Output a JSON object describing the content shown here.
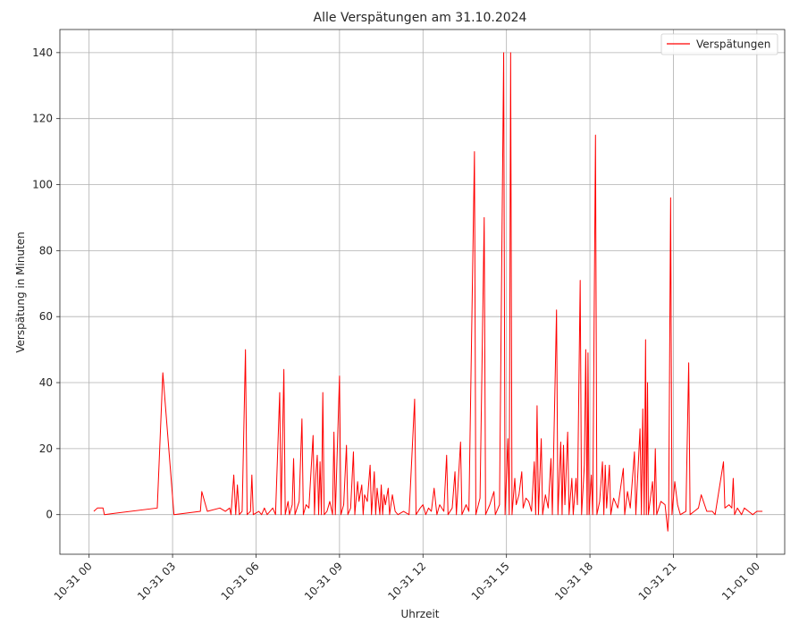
{
  "chart_data": {
    "type": "line",
    "title": "Alle Verspätungen am 31.10.2024",
    "xlabel": "Uhrzeit",
    "ylabel": "Verspätung in Minuten",
    "x_unit": "hours since 2024-10-31 00:00",
    "xlim": [
      -1.05,
      25.0
    ],
    "ylim": [
      -12,
      147
    ],
    "grid": true,
    "legend_position": "top-right",
    "xticks": [
      {
        "value": 0,
        "label": "10-31 00"
      },
      {
        "value": 3,
        "label": "10-31 03"
      },
      {
        "value": 6,
        "label": "10-31 06"
      },
      {
        "value": 9,
        "label": "10-31 09"
      },
      {
        "value": 12,
        "label": "10-31 12"
      },
      {
        "value": 15,
        "label": "10-31 15"
      },
      {
        "value": 18,
        "label": "10-31 18"
      },
      {
        "value": 21,
        "label": "10-31 21"
      },
      {
        "value": 24,
        "label": "11-01 00"
      }
    ],
    "yticks": [
      {
        "value": 0,
        "label": "0"
      },
      {
        "value": 20,
        "label": "20"
      },
      {
        "value": 40,
        "label": "40"
      },
      {
        "value": 60,
        "label": "60"
      },
      {
        "value": 80,
        "label": "80"
      },
      {
        "value": 100,
        "label": "100"
      },
      {
        "value": 120,
        "label": "120"
      },
      {
        "value": 140,
        "label": "140"
      }
    ],
    "series": [
      {
        "name": "Verspätungen",
        "color": "#ff0000",
        "points": [
          [
            0.17,
            1
          ],
          [
            0.3,
            2
          ],
          [
            0.5,
            2
          ],
          [
            0.55,
            0
          ],
          [
            2.45,
            2
          ],
          [
            2.65,
            43
          ],
          [
            3.05,
            0
          ],
          [
            4.0,
            1
          ],
          [
            4.05,
            7
          ],
          [
            4.25,
            1
          ],
          [
            4.7,
            2
          ],
          [
            4.9,
            1
          ],
          [
            5.05,
            2
          ],
          [
            5.1,
            0
          ],
          [
            5.2,
            12
          ],
          [
            5.27,
            0
          ],
          [
            5.33,
            9
          ],
          [
            5.4,
            0
          ],
          [
            5.5,
            1
          ],
          [
            5.62,
            50
          ],
          [
            5.68,
            0
          ],
          [
            5.8,
            1
          ],
          [
            5.85,
            12
          ],
          [
            5.9,
            0
          ],
          [
            6.1,
            1
          ],
          [
            6.2,
            0
          ],
          [
            6.3,
            2
          ],
          [
            6.4,
            0
          ],
          [
            6.5,
            1
          ],
          [
            6.6,
            2
          ],
          [
            6.7,
            0
          ],
          [
            6.85,
            37
          ],
          [
            6.9,
            0
          ],
          [
            7.0,
            44
          ],
          [
            7.05,
            0
          ],
          [
            7.15,
            4
          ],
          [
            7.2,
            0
          ],
          [
            7.3,
            3
          ],
          [
            7.35,
            17
          ],
          [
            7.4,
            0
          ],
          [
            7.55,
            4
          ],
          [
            7.65,
            29
          ],
          [
            7.7,
            0
          ],
          [
            7.8,
            3
          ],
          [
            7.9,
            2
          ],
          [
            8.05,
            24
          ],
          [
            8.1,
            0
          ],
          [
            8.15,
            12
          ],
          [
            8.2,
            18
          ],
          [
            8.25,
            0
          ],
          [
            8.3,
            16
          ],
          [
            8.35,
            0
          ],
          [
            8.4,
            37
          ],
          [
            8.45,
            0
          ],
          [
            8.55,
            1
          ],
          [
            8.65,
            4
          ],
          [
            8.75,
            0
          ],
          [
            8.8,
            25
          ],
          [
            8.85,
            0
          ],
          [
            9.0,
            42
          ],
          [
            9.05,
            0
          ],
          [
            9.15,
            3
          ],
          [
            9.25,
            21
          ],
          [
            9.3,
            0
          ],
          [
            9.4,
            2
          ],
          [
            9.5,
            19
          ],
          [
            9.55,
            0
          ],
          [
            9.65,
            10
          ],
          [
            9.7,
            4
          ],
          [
            9.8,
            9
          ],
          [
            9.85,
            0
          ],
          [
            9.9,
            6
          ],
          [
            10.0,
            4
          ],
          [
            10.1,
            15
          ],
          [
            10.15,
            0
          ],
          [
            10.25,
            13
          ],
          [
            10.3,
            0
          ],
          [
            10.35,
            8
          ],
          [
            10.45,
            0
          ],
          [
            10.5,
            9
          ],
          [
            10.55,
            0
          ],
          [
            10.6,
            6
          ],
          [
            10.65,
            3
          ],
          [
            10.75,
            8
          ],
          [
            10.8,
            0
          ],
          [
            10.9,
            6
          ],
          [
            11.0,
            1
          ],
          [
            11.1,
            0
          ],
          [
            11.3,
            1
          ],
          [
            11.5,
            0
          ],
          [
            11.7,
            35
          ],
          [
            11.75,
            0
          ],
          [
            11.9,
            2
          ],
          [
            12.0,
            3
          ],
          [
            12.1,
            0
          ],
          [
            12.2,
            2
          ],
          [
            12.3,
            1
          ],
          [
            12.4,
            8
          ],
          [
            12.5,
            0
          ],
          [
            12.6,
            3
          ],
          [
            12.75,
            1
          ],
          [
            12.85,
            18
          ],
          [
            12.9,
            0
          ],
          [
            13.05,
            2
          ],
          [
            13.15,
            13
          ],
          [
            13.2,
            0
          ],
          [
            13.35,
            22
          ],
          [
            13.4,
            0
          ],
          [
            13.55,
            3
          ],
          [
            13.65,
            1
          ],
          [
            13.85,
            110
          ],
          [
            13.9,
            0
          ],
          [
            14.05,
            5
          ],
          [
            14.2,
            90
          ],
          [
            14.25,
            0
          ],
          [
            14.4,
            3
          ],
          [
            14.55,
            7
          ],
          [
            14.6,
            0
          ],
          [
            14.75,
            3
          ],
          [
            14.9,
            140
          ],
          [
            14.95,
            0
          ],
          [
            15.05,
            23
          ],
          [
            15.1,
            0
          ],
          [
            15.15,
            140
          ],
          [
            15.2,
            0
          ],
          [
            15.3,
            11
          ],
          [
            15.35,
            3
          ],
          [
            15.45,
            6
          ],
          [
            15.55,
            13
          ],
          [
            15.6,
            2
          ],
          [
            15.7,
            5
          ],
          [
            15.8,
            4
          ],
          [
            15.9,
            1
          ],
          [
            16.0,
            16
          ],
          [
            16.05,
            0
          ],
          [
            16.1,
            33
          ],
          [
            16.15,
            0
          ],
          [
            16.25,
            23
          ],
          [
            16.3,
            0
          ],
          [
            16.4,
            6
          ],
          [
            16.5,
            2
          ],
          [
            16.6,
            17
          ],
          [
            16.65,
            0
          ],
          [
            16.8,
            62
          ],
          [
            16.85,
            0
          ],
          [
            16.95,
            22
          ],
          [
            17.0,
            0
          ],
          [
            17.05,
            21
          ],
          [
            17.1,
            3
          ],
          [
            17.2,
            25
          ],
          [
            17.25,
            0
          ],
          [
            17.35,
            11
          ],
          [
            17.4,
            0
          ],
          [
            17.5,
            11
          ],
          [
            17.55,
            3
          ],
          [
            17.65,
            71
          ],
          [
            17.7,
            0
          ],
          [
            17.8,
            15
          ],
          [
            17.85,
            50
          ],
          [
            17.9,
            0
          ],
          [
            17.93,
            49
          ],
          [
            17.97,
            0
          ],
          [
            18.05,
            12
          ],
          [
            18.1,
            0
          ],
          [
            18.2,
            115
          ],
          [
            18.25,
            0
          ],
          [
            18.35,
            4
          ],
          [
            18.45,
            16
          ],
          [
            18.5,
            0
          ],
          [
            18.55,
            15
          ],
          [
            18.6,
            2
          ],
          [
            18.7,
            15
          ],
          [
            18.75,
            0
          ],
          [
            18.85,
            5
          ],
          [
            19.0,
            2
          ],
          [
            19.2,
            14
          ],
          [
            19.25,
            0
          ],
          [
            19.35,
            7
          ],
          [
            19.45,
            2
          ],
          [
            19.6,
            19
          ],
          [
            19.65,
            0
          ],
          [
            19.8,
            26
          ],
          [
            19.85,
            0
          ],
          [
            19.9,
            32
          ],
          [
            19.95,
            0
          ],
          [
            20.0,
            53
          ],
          [
            20.03,
            0
          ],
          [
            20.07,
            40
          ],
          [
            20.1,
            0
          ],
          [
            20.25,
            10
          ],
          [
            20.3,
            0
          ],
          [
            20.35,
            20
          ],
          [
            20.4,
            0
          ],
          [
            20.55,
            4
          ],
          [
            20.7,
            3
          ],
          [
            20.8,
            -5
          ],
          [
            20.83,
            0
          ],
          [
            20.9,
            96
          ],
          [
            20.95,
            0
          ],
          [
            21.05,
            10
          ],
          [
            21.15,
            3
          ],
          [
            21.25,
            0
          ],
          [
            21.45,
            1
          ],
          [
            21.55,
            46
          ],
          [
            21.6,
            0
          ],
          [
            21.75,
            1
          ],
          [
            21.9,
            2
          ],
          [
            22.0,
            6
          ],
          [
            22.2,
            1
          ],
          [
            22.4,
            1
          ],
          [
            22.5,
            0
          ],
          [
            22.8,
            16
          ],
          [
            22.85,
            2
          ],
          [
            23.0,
            3
          ],
          [
            23.1,
            2
          ],
          [
            23.15,
            11
          ],
          [
            23.2,
            0
          ],
          [
            23.3,
            2
          ],
          [
            23.45,
            0
          ],
          [
            23.55,
            2
          ],
          [
            23.7,
            1
          ],
          [
            23.85,
            0
          ],
          [
            24.0,
            1
          ],
          [
            24.2,
            1
          ]
        ]
      }
    ]
  }
}
